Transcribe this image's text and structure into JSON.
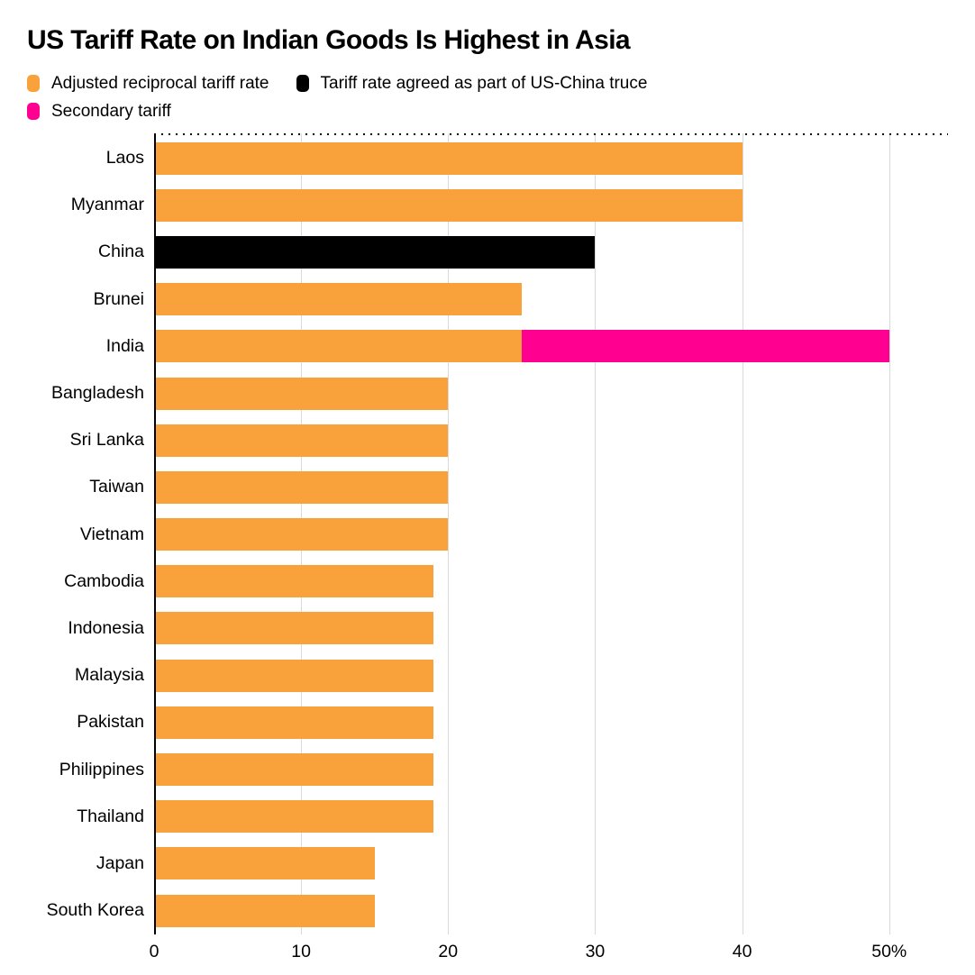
{
  "title": "US Tariff Rate on Indian Goods Is Highest in Asia",
  "colors": {
    "orange": "#F9A13B",
    "black": "#000000",
    "pink": "#FF0090",
    "gridline": "#D9D9D9",
    "axis": "#000000"
  },
  "legend": {
    "rows": [
      [
        {
          "key": "orange",
          "label": "Adjusted reciprocal tariff rate"
        },
        {
          "key": "black",
          "label": "Tariff rate agreed as part of US-China truce"
        }
      ],
      [
        {
          "key": "pink",
          "label": "Secondary tariff"
        }
      ]
    ]
  },
  "chart_data": {
    "type": "bar",
    "orientation": "horizontal",
    "title": "US Tariff Rate on Indian Goods Is Highest in Asia",
    "unit": "%",
    "xlim": [
      0,
      54
    ],
    "grid": true,
    "legend_position": "top",
    "xticks": [
      {
        "value": 0,
        "label": "0"
      },
      {
        "value": 10,
        "label": "10"
      },
      {
        "value": 20,
        "label": "20"
      },
      {
        "value": 30,
        "label": "30"
      },
      {
        "value": 40,
        "label": "40"
      },
      {
        "value": 50,
        "label": "50%"
      }
    ],
    "series": [
      {
        "name": "Adjusted reciprocal tariff rate",
        "color_key": "orange",
        "values": [
          40,
          40,
          0,
          25,
          25,
          20,
          20,
          20,
          20,
          19,
          19,
          19,
          19,
          19,
          19,
          15,
          15
        ]
      },
      {
        "name": "Tariff rate agreed as part of US-China truce",
        "color_key": "black",
        "values": [
          0,
          0,
          30,
          0,
          0,
          0,
          0,
          0,
          0,
          0,
          0,
          0,
          0,
          0,
          0,
          0,
          0
        ]
      },
      {
        "name": "Secondary tariff",
        "color_key": "pink",
        "values": [
          0,
          0,
          0,
          0,
          25,
          0,
          0,
          0,
          0,
          0,
          0,
          0,
          0,
          0,
          0,
          0,
          0
        ]
      }
    ],
    "categories": [
      "Laos",
      "Myanmar",
      "China",
      "Brunei",
      "India",
      "Bangladesh",
      "Sri Lanka",
      "Taiwan",
      "Vietnam",
      "Cambodia",
      "Indonesia",
      "Malaysia",
      "Pakistan",
      "Philippines",
      "Thailand",
      "Japan",
      "South Korea"
    ],
    "rows": [
      {
        "label": "Laos",
        "segments": [
          {
            "series": "Adjusted reciprocal tariff rate",
            "color_key": "orange",
            "value": 40
          }
        ]
      },
      {
        "label": "Myanmar",
        "segments": [
          {
            "series": "Adjusted reciprocal tariff rate",
            "color_key": "orange",
            "value": 40
          }
        ]
      },
      {
        "label": "China",
        "segments": [
          {
            "series": "Tariff rate agreed as part of US-China truce",
            "color_key": "black",
            "value": 30
          }
        ]
      },
      {
        "label": "Brunei",
        "segments": [
          {
            "series": "Adjusted reciprocal tariff rate",
            "color_key": "orange",
            "value": 25
          }
        ]
      },
      {
        "label": "India",
        "segments": [
          {
            "series": "Adjusted reciprocal tariff rate",
            "color_key": "orange",
            "value": 25
          },
          {
            "series": "Secondary tariff",
            "color_key": "pink",
            "value": 25
          }
        ]
      },
      {
        "label": "Bangladesh",
        "segments": [
          {
            "series": "Adjusted reciprocal tariff rate",
            "color_key": "orange",
            "value": 20
          }
        ]
      },
      {
        "label": "Sri Lanka",
        "segments": [
          {
            "series": "Adjusted reciprocal tariff rate",
            "color_key": "orange",
            "value": 20
          }
        ]
      },
      {
        "label": "Taiwan",
        "segments": [
          {
            "series": "Adjusted reciprocal tariff rate",
            "color_key": "orange",
            "value": 20
          }
        ]
      },
      {
        "label": "Vietnam",
        "segments": [
          {
            "series": "Adjusted reciprocal tariff rate",
            "color_key": "orange",
            "value": 20
          }
        ]
      },
      {
        "label": "Cambodia",
        "segments": [
          {
            "series": "Adjusted reciprocal tariff rate",
            "color_key": "orange",
            "value": 19
          }
        ]
      },
      {
        "label": "Indonesia",
        "segments": [
          {
            "series": "Adjusted reciprocal tariff rate",
            "color_key": "orange",
            "value": 19
          }
        ]
      },
      {
        "label": "Malaysia",
        "segments": [
          {
            "series": "Adjusted reciprocal tariff rate",
            "color_key": "orange",
            "value": 19
          }
        ]
      },
      {
        "label": "Pakistan",
        "segments": [
          {
            "series": "Adjusted reciprocal tariff rate",
            "color_key": "orange",
            "value": 19
          }
        ]
      },
      {
        "label": "Philippines",
        "segments": [
          {
            "series": "Adjusted reciprocal tariff rate",
            "color_key": "orange",
            "value": 19
          }
        ]
      },
      {
        "label": "Thailand",
        "segments": [
          {
            "series": "Adjusted reciprocal tariff rate",
            "color_key": "orange",
            "value": 19
          }
        ]
      },
      {
        "label": "Japan",
        "segments": [
          {
            "series": "Adjusted reciprocal tariff rate",
            "color_key": "orange",
            "value": 15
          }
        ]
      },
      {
        "label": "South Korea",
        "segments": [
          {
            "series": "Adjusted reciprocal tariff rate",
            "color_key": "orange",
            "value": 15
          }
        ]
      }
    ]
  }
}
